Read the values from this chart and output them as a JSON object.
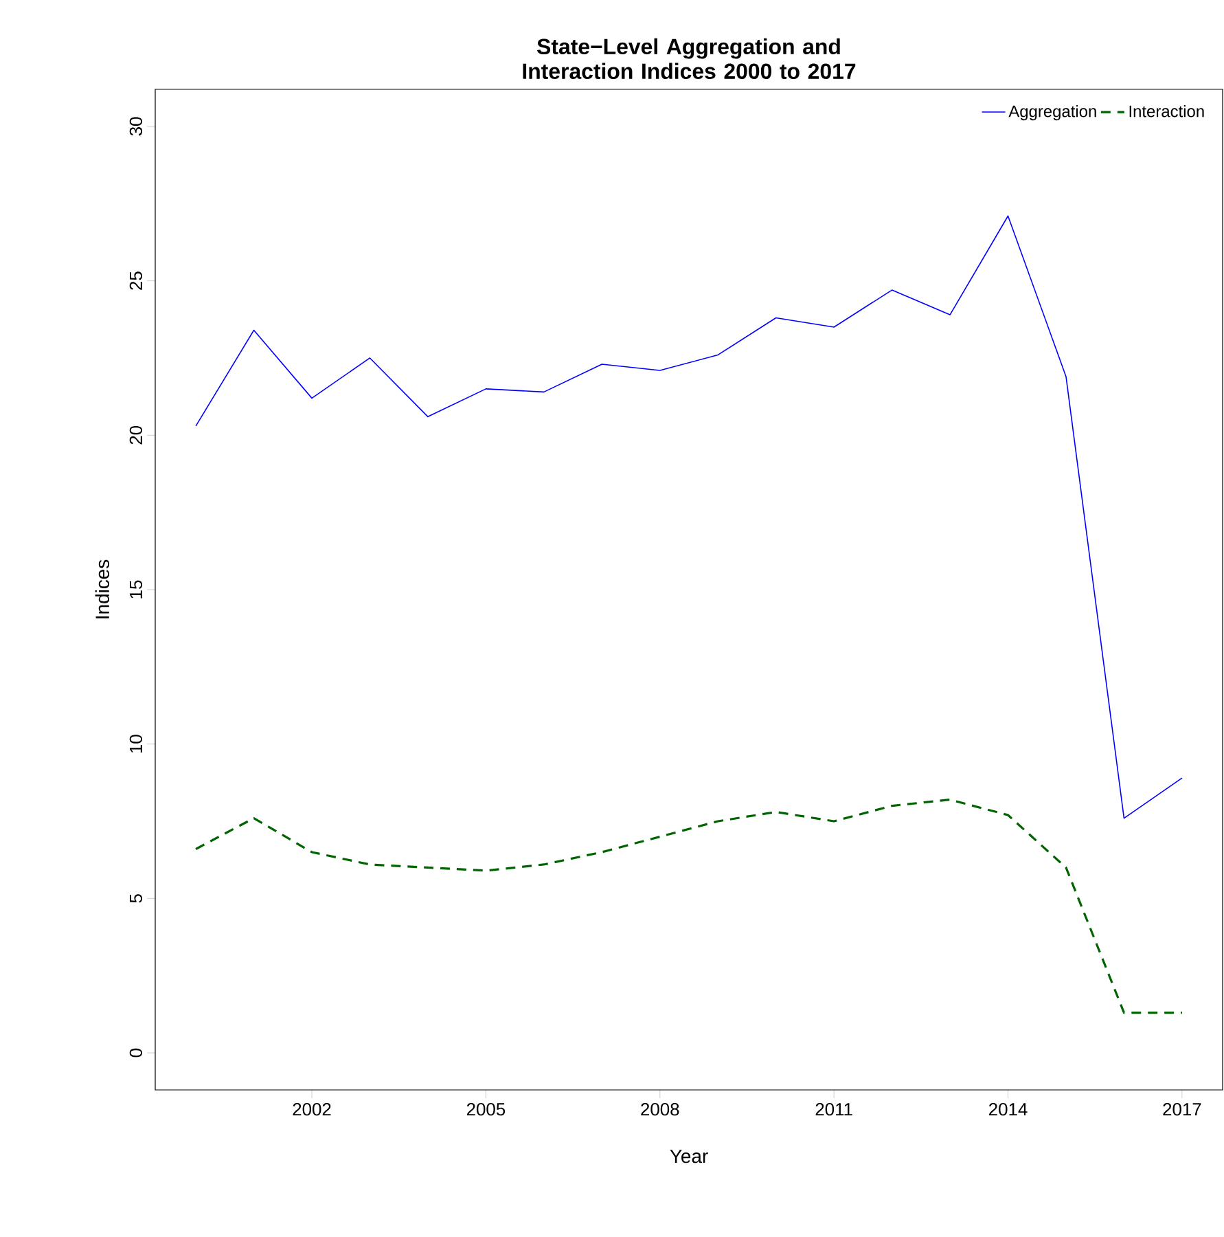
{
  "chart_data": {
    "type": "line",
    "title": "State−Level Aggregation and Interaction Indices 2000 to 2017",
    "xlabel": "Year",
    "ylabel": "Indices",
    "x": [
      2000,
      2001,
      2002,
      2003,
      2004,
      2005,
      2006,
      2007,
      2008,
      2009,
      2010,
      2011,
      2012,
      2013,
      2014,
      2015,
      2016,
      2017
    ],
    "series": [
      {
        "name": "Aggregation",
        "color": "#0000ff",
        "line_style": "solid",
        "values": [
          20.3,
          23.4,
          21.2,
          22.5,
          20.6,
          21.5,
          21.4,
          22.3,
          22.1,
          22.6,
          23.8,
          23.5,
          24.7,
          23.9,
          27.1,
          21.9,
          7.6,
          8.9
        ]
      },
      {
        "name": "Interaction",
        "color": "#006400",
        "line_style": "dashed",
        "values": [
          6.6,
          7.6,
          6.5,
          6.1,
          6.0,
          5.9,
          6.1,
          6.5,
          7.0,
          7.5,
          7.8,
          7.5,
          8.0,
          8.2,
          7.7,
          6.0,
          1.3,
          1.3
        ]
      }
    ],
    "xlim": [
      1999.3,
      2017.7
    ],
    "ylim": [
      -1.2,
      31.2
    ],
    "xticks": [
      2002,
      2005,
      2008,
      2011,
      2014,
      2017
    ],
    "yticks": [
      0,
      5,
      10,
      15,
      20,
      25,
      30
    ],
    "legend": "top right",
    "marker": "none"
  }
}
